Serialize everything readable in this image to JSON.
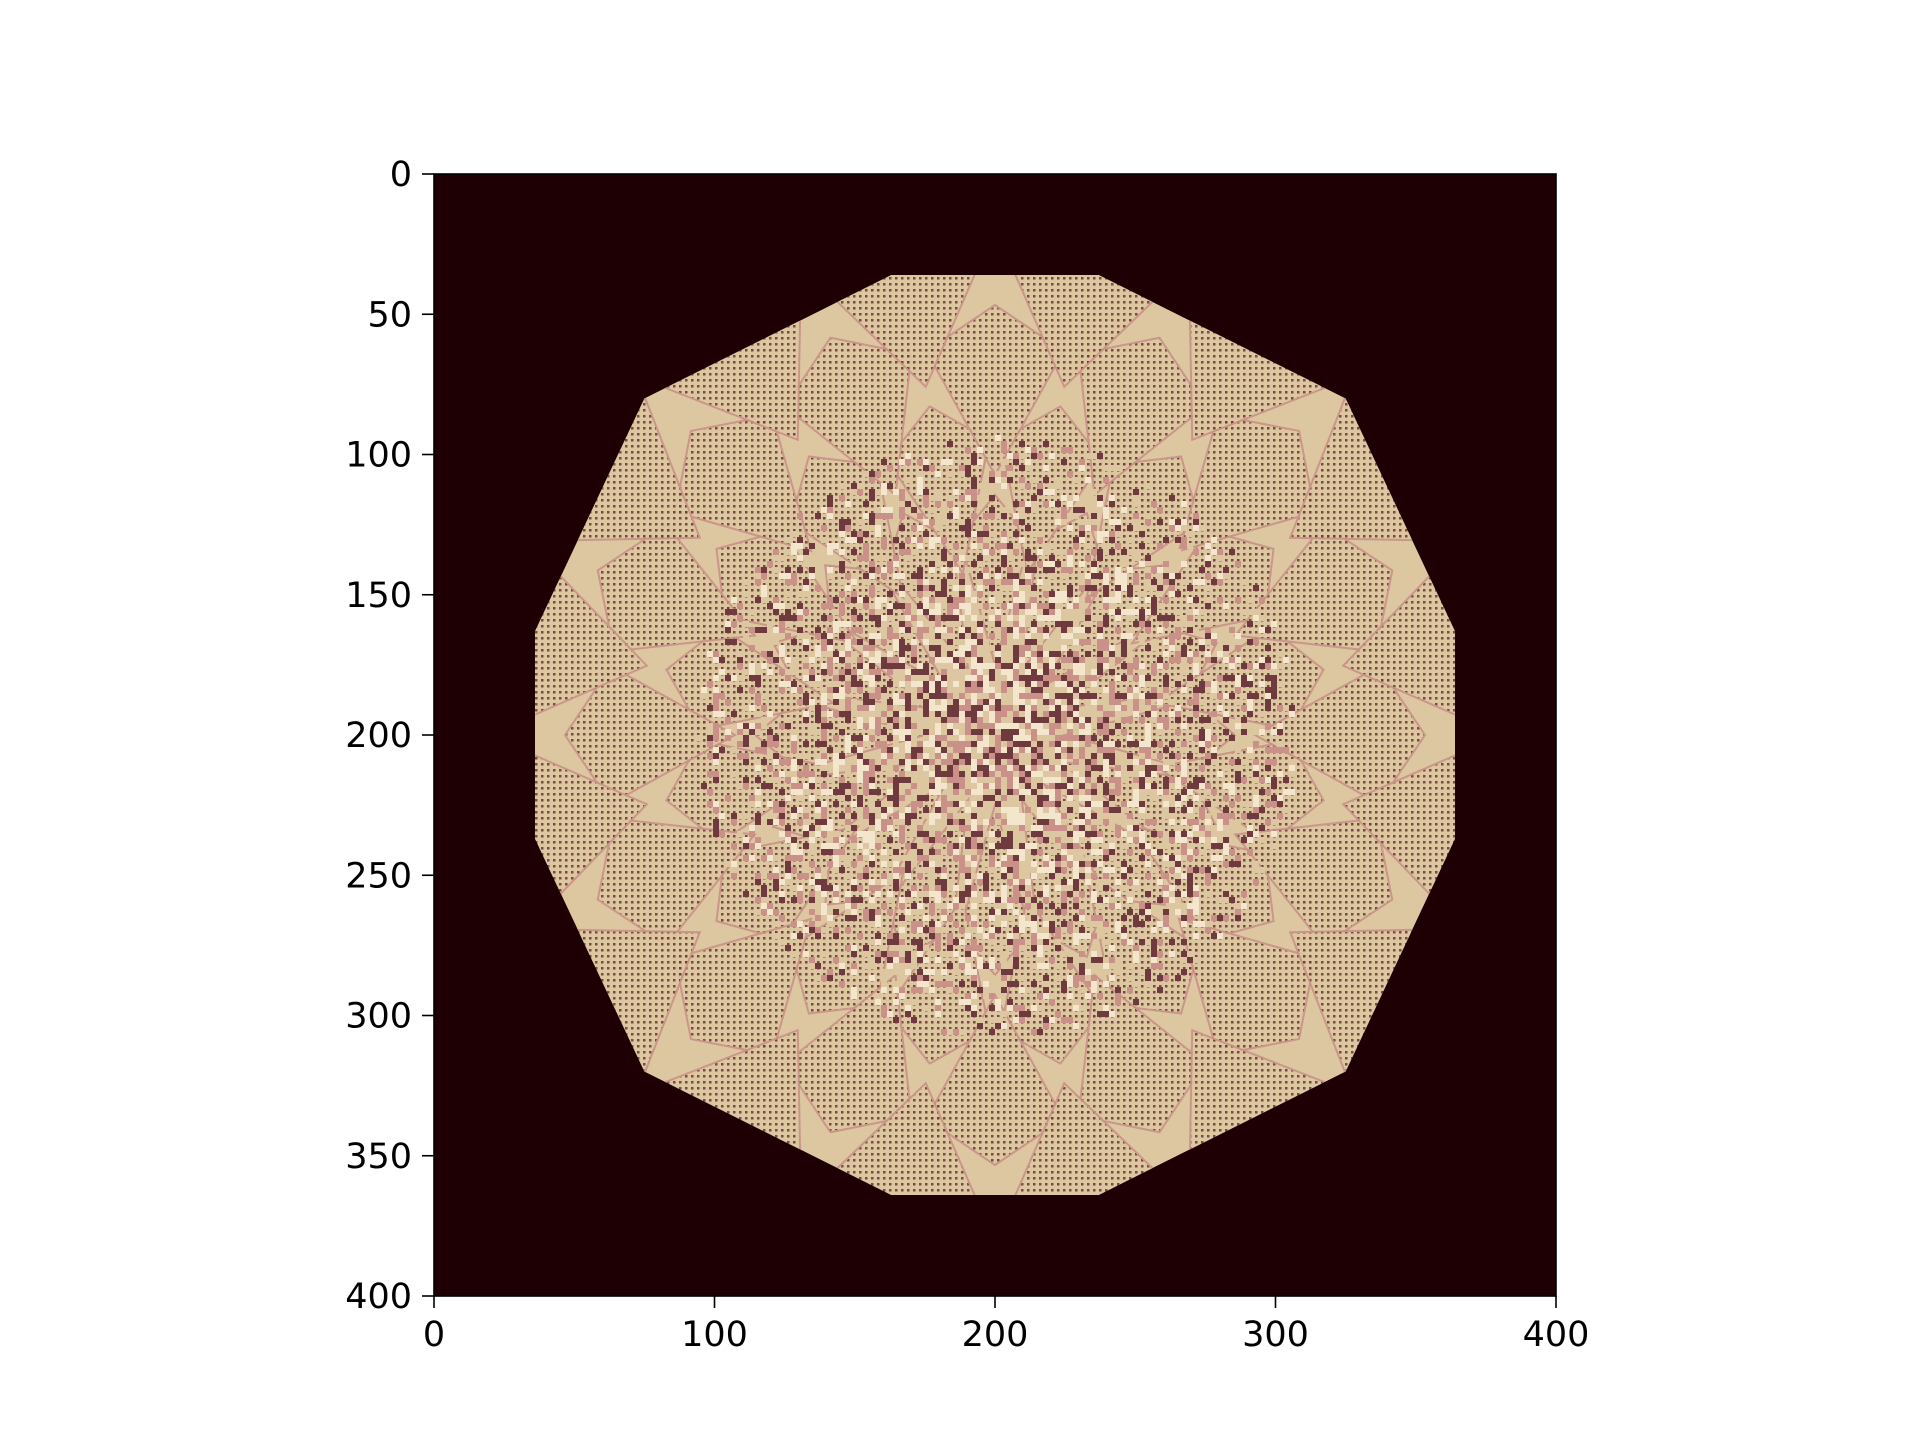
{
  "chart_data": {
    "type": "heatmap",
    "title": "",
    "xlabel": "",
    "ylabel": "",
    "xlim": [
      0,
      400
    ],
    "ylim": [
      400,
      0
    ],
    "y_axis_inverted": true,
    "x_ticks": [
      0,
      100,
      200,
      300,
      400
    ],
    "x_tick_labels": [
      "0",
      "100",
      "200",
      "300",
      "400"
    ],
    "y_ticks": [
      0,
      50,
      100,
      150,
      200,
      250,
      300,
      350,
      400
    ],
    "y_tick_labels": [
      "0",
      "50",
      "100",
      "150",
      "200",
      "250",
      "300",
      "350",
      "400"
    ],
    "grid": false,
    "legend": "none",
    "colormap": "pink",
    "colors": {
      "background": "#1e0004",
      "fill_light": "#dcc7a0",
      "fill_mid": "#c99188",
      "fill_dark": "#6e3a3e"
    },
    "matrix_size": [
      400,
      400
    ],
    "pattern": {
      "description_values": "octagonal region of non-zero cells centred near (200, 200)",
      "octagon_vertices": [
        [
          163,
          36
        ],
        [
          237,
          36
        ],
        [
          325,
          80
        ],
        [
          364,
          163
        ],
        [
          364,
          237
        ],
        [
          325,
          320
        ],
        [
          237,
          364
        ],
        [
          163,
          364
        ],
        [
          75,
          320
        ],
        [
          36,
          237
        ],
        [
          36,
          163
        ],
        [
          75,
          80
        ]
      ],
      "center": [
        200,
        200
      ]
    }
  }
}
